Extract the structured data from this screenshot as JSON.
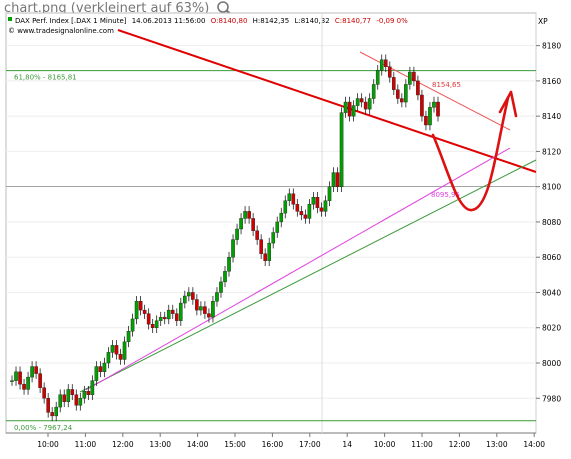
{
  "caption": "chart.png (verkleinert auf 63%)",
  "header": {
    "instrument": "DAX Perf. Index [.DAX 1 Minute]",
    "datetime": "14.06.2013 11:56:00",
    "open": "O:8140,80",
    "high": "H:8142,35",
    "low": "L:8140,32",
    "close": "C:8140,77",
    "change": "-0,09 0%",
    "source": "www.tradesignalonline.com",
    "symbol_right": "XP"
  },
  "annotations": {
    "fib_618": "61,80% - 8165,81",
    "fib_0": "0,00% - 7967,24",
    "upper_channel": "8154,65",
    "magenta_level": "8095,95"
  },
  "colors": {
    "up": "#00a000",
    "down": "#d00000",
    "trend_red": "#e00000",
    "fib_green": "#3a9a3a",
    "magenta": "#e040e0",
    "hand_arrow": "#dd1111"
  },
  "chart_data": {
    "type": "line",
    "title": "",
    "xlabel": "",
    "ylabel": "",
    "ylim": [
      7962,
      8190
    ],
    "yticks": [
      7980,
      8000,
      8020,
      8040,
      8060,
      8080,
      8100,
      8120,
      8140,
      8160,
      8180
    ],
    "xtick_labels": [
      "10:00",
      "11:00",
      "12:00",
      "13:00",
      "14:00",
      "15:00",
      "16:00",
      "17:00",
      "14",
      "10:00",
      "11:00",
      "12:00",
      "13:00",
      "14:00"
    ],
    "price_series": {
      "name": "DAX 1 Minute",
      "x_index": [
        0,
        5,
        10,
        15,
        20,
        25,
        30,
        35,
        40,
        45,
        50,
        55,
        60,
        65,
        70,
        75,
        80,
        85,
        90,
        95,
        100,
        105,
        110,
        115,
        120,
        125,
        130,
        135,
        140,
        145,
        150,
        155,
        160,
        165,
        170,
        175,
        180,
        185,
        190,
        195,
        200,
        205,
        210,
        215,
        220,
        225,
        230,
        235,
        240,
        245,
        250,
        255,
        260,
        265,
        270,
        275,
        280,
        285,
        290,
        295,
        300,
        305,
        310,
        315,
        320,
        325,
        330,
        335,
        340,
        345,
        350,
        355,
        360,
        365,
        370,
        375,
        380,
        385,
        390,
        395,
        400,
        405,
        410,
        415,
        420,
        425,
        430,
        435,
        440,
        445,
        450,
        455,
        460,
        465,
        470,
        475,
        480,
        485,
        490,
        495,
        500,
        505,
        510,
        515,
        520,
        525,
        530
      ],
      "values": [
        7990,
        7995,
        7988,
        7985,
        7992,
        7998,
        7994,
        7986,
        7980,
        7972,
        7970,
        7975,
        7982,
        7978,
        7985,
        7982,
        7976,
        7980,
        7984,
        7982,
        7990,
        7998,
        7995,
        8000,
        8006,
        8010,
        8005,
        8002,
        8012,
        8018,
        8025,
        8035,
        8030,
        8028,
        8022,
        8020,
        8024,
        8026,
        8025,
        8030,
        8028,
        8024,
        8034,
        8038,
        8040,
        8036,
        8030,
        8032,
        8028,
        8026,
        8035,
        8040,
        8046,
        8052,
        8060,
        8070,
        8076,
        8082,
        8086,
        8082,
        8075,
        8070,
        8062,
        8058,
        8068,
        8074,
        8080,
        8085,
        8092,
        8096,
        8090,
        8086,
        8084,
        8082,
        8090,
        8094,
        8088,
        8086,
        8092,
        8100,
        8108,
        8100,
        8142,
        8148,
        8140,
        8146,
        8150,
        8148,
        8144,
        8150,
        8158,
        8166,
        8172,
        8168,
        8162,
        8155,
        8150,
        8148,
        8158,
        8165,
        8160,
        8152,
        8140,
        8135,
        8145,
        8148,
        8140
      ]
    },
    "horizontal_lines": [
      {
        "label": "61,80% - 8165,81",
        "value": 8165.81
      },
      {
        "label": "0,00% - 7967,24",
        "value": 7967.24
      }
    ]
  }
}
